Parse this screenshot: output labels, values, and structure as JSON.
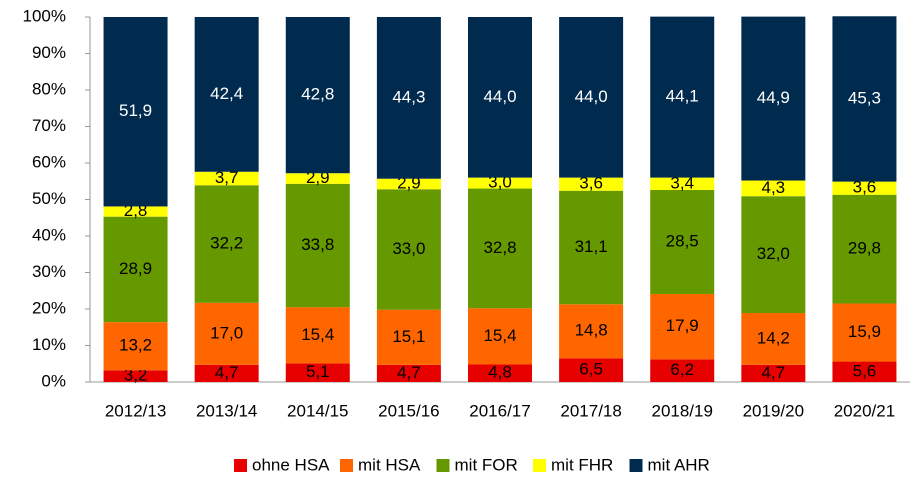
{
  "chart_data": {
    "type": "stacked_bar",
    "categories": [
      "2012/13",
      "2013/14",
      "2014/15",
      "2015/16",
      "2016/17",
      "2017/18",
      "2018/19",
      "2019/20",
      "2020/21"
    ],
    "series": [
      {
        "name": "ohne HSA",
        "color": "#e60000",
        "values": [
          3.2,
          4.7,
          5.1,
          4.7,
          4.8,
          6.5,
          6.2,
          4.7,
          5.6
        ],
        "value_labels": [
          "3,2",
          "4,7",
          "5,1",
          "4,7",
          "4,8",
          "6,5",
          "6,2",
          "4,7",
          "5,6"
        ]
      },
      {
        "name": "mit HSA",
        "color": "#ff6600",
        "values": [
          13.2,
          17.0,
          15.4,
          15.1,
          15.4,
          14.8,
          17.9,
          14.2,
          15.9
        ],
        "value_labels": [
          "13,2",
          "17,0",
          "15,4",
          "15,1",
          "15,4",
          "14,8",
          "17,9",
          "14,2",
          "15,9"
        ]
      },
      {
        "name": "mit FOR",
        "color": "#669900",
        "values": [
          28.9,
          32.2,
          33.8,
          33.0,
          32.8,
          31.1,
          28.5,
          32.0,
          29.8
        ],
        "value_labels": [
          "28,9",
          "32,2",
          "33,8",
          "33,0",
          "32,8",
          "31,1",
          "28,5",
          "32,0",
          "29,8"
        ]
      },
      {
        "name": "mit FHR",
        "color": "#ffff00",
        "values": [
          2.8,
          3.7,
          2.9,
          2.9,
          3.0,
          3.6,
          3.4,
          4.3,
          3.6
        ],
        "value_labels": [
          "2,8",
          "3,7",
          "2,9",
          "2,9",
          "3,0",
          "3,6",
          "3,4",
          "4,3",
          "3,6"
        ]
      },
      {
        "name": "mit AHR",
        "color": "#002b4f",
        "values": [
          51.9,
          42.4,
          42.8,
          44.3,
          44.0,
          44.0,
          44.1,
          44.9,
          45.3
        ],
        "value_labels": [
          "51,9",
          "42,4",
          "42,8",
          "44,3",
          "44,0",
          "44,0",
          "44,1",
          "44,9",
          "45,3"
        ]
      }
    ],
    "ylim": [
      0,
      100
    ],
    "yticks": [
      {
        "value": 0,
        "label": "0%"
      },
      {
        "value": 10,
        "label": "10%"
      },
      {
        "value": 20,
        "label": "20%"
      },
      {
        "value": 30,
        "label": "30%"
      },
      {
        "value": 40,
        "label": "40%"
      },
      {
        "value": 50,
        "label": "50%"
      },
      {
        "value": 60,
        "label": "60%"
      },
      {
        "value": 70,
        "label": "70%"
      },
      {
        "value": 80,
        "label": "80%"
      },
      {
        "value": 90,
        "label": "90%"
      },
      {
        "value": 100,
        "label": "100%"
      }
    ],
    "legend": "bottom"
  }
}
